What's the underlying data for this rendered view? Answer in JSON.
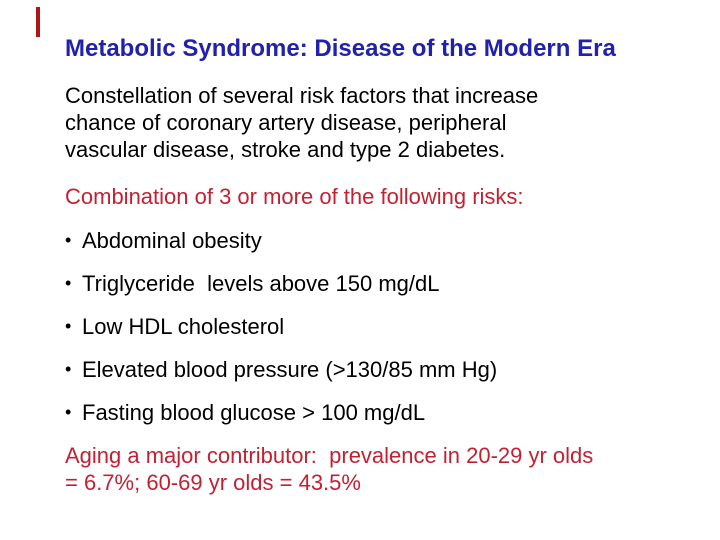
{
  "slide": {
    "title": "Metabolic Syndrome: Disease of the Modern Era",
    "intro": "Constellation of several risk factors that increase chance of coronary artery disease, peripheral vascular disease, stroke and type 2 diabetes.",
    "risks_heading": "Combination of 3 or more of the following risks:",
    "bullet_glyph": "•",
    "bullets": [
      "Abdominal obesity",
      "Triglyceride  levels above 150 mg/dL",
      "Low HDL cholesterol",
      "Elevated blood pressure (>130/85 mm Hg)",
      "Fasting blood glucose > 100 mg/dL"
    ],
    "closing": "Aging a major contributor:  prevalence in 20-29 yr olds = 6.7%; 60-69 yr olds = 43.5%",
    "colors": {
      "title_blue": "#2121AE",
      "accent_red": "#C32132",
      "body_text": "#000000",
      "edge_marker_red": "#AF1417",
      "background": "#FFFFFF"
    }
  }
}
